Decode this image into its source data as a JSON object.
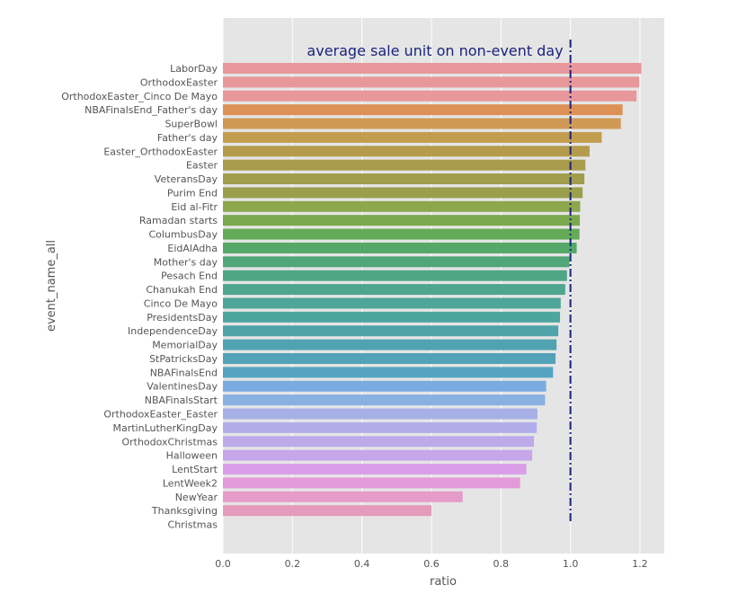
{
  "chart_data": {
    "type": "bar",
    "orientation": "horizontal",
    "xlabel": "ratio",
    "ylabel": "event_name_all",
    "xlim": [
      0.0,
      1.27
    ],
    "xticks": [
      0.0,
      0.2,
      0.4,
      0.6,
      0.8,
      1.0,
      1.2
    ],
    "xtick_labels": [
      "0.0",
      "0.2",
      "0.4",
      "0.6",
      "0.8",
      "1.0",
      "1.2"
    ],
    "grid": true,
    "background": "#e5e5e5",
    "reference_line": {
      "x": 1.0,
      "style": "dash-dot",
      "color": "#1a237e",
      "annotation": "average sale unit on non-event day"
    },
    "categories": [
      "LaborDay",
      "OrthodoxEaster",
      "OrthodoxEaster_Cinco De Mayo",
      "NBAFinalsEnd_Father's day",
      "SuperBowl",
      "Father's day",
      "Easter_OrthodoxEaster",
      "Easter",
      "VeteransDay",
      "Purim End",
      "Eid al-Fitr",
      "Ramadan starts",
      "ColumbusDay",
      "EidAlAdha",
      "Mother's day",
      "Pesach End",
      "Chanukah End",
      "Cinco De Mayo",
      "PresidentsDay",
      "IndependenceDay",
      "MemorialDay",
      "StPatricksDay",
      "NBAFinalsEnd",
      "ValentinesDay",
      "NBAFinalsStart",
      "OrthodoxEaster_Easter",
      "MartinLutherKingDay",
      "OrthodoxChristmas",
      "Halloween",
      "LentStart",
      "LentWeek2",
      "NewYear",
      "Thanksgiving",
      "Christmas"
    ],
    "values": [
      1.204,
      1.198,
      1.19,
      1.15,
      1.145,
      1.09,
      1.055,
      1.043,
      1.04,
      1.035,
      1.028,
      1.027,
      1.026,
      1.018,
      0.997,
      0.99,
      0.985,
      0.972,
      0.97,
      0.965,
      0.96,
      0.957,
      0.95,
      0.93,
      0.927,
      0.905,
      0.903,
      0.895,
      0.89,
      0.873,
      0.855,
      0.69,
      0.6,
      0.0
    ],
    "colors": [
      "#e8979a",
      "#e8979a",
      "#e8979a",
      "#dd9155",
      "#cf9a55",
      "#c39d4e",
      "#b49c4c",
      "#a89c4c",
      "#a09d4c",
      "#999f4b",
      "#8ea64c",
      "#7aa84c",
      "#63ab56",
      "#55a867",
      "#50a77a",
      "#4fa686",
      "#4ea68f",
      "#4ea598",
      "#4ea49f",
      "#4fa3a9",
      "#51a3b1",
      "#53a2b8",
      "#56a3c2",
      "#7aabe0",
      "#8ab0e2",
      "#a6afe6",
      "#b2adea",
      "#bcaaea",
      "#c6a7e9",
      "#da9ee8",
      "#e39ad8",
      "#e59cc8",
      "#e59bbb",
      "#e59bb2"
    ]
  }
}
